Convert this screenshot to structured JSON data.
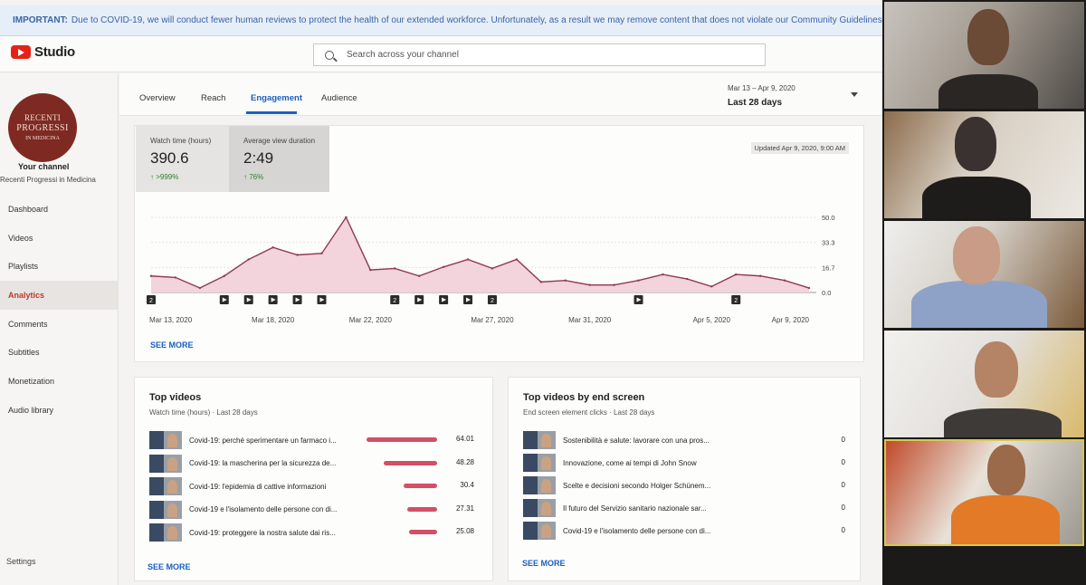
{
  "banner": {
    "important": "IMPORTANT:",
    "text": "Due to COVID-19, we will conduct fewer human reviews to protect the health of our extended workforce. Unfortunately, as a result we may remove content that does not violate our Community Guidelines"
  },
  "header": {
    "logo_text": "Studio",
    "search_placeholder": "Search across your channel"
  },
  "sidebar": {
    "avatar_lines": [
      "RECENTI",
      "PROGRESSI",
      "IN MEDICINA"
    ],
    "your_channel": "Your channel",
    "channel_name": "Recenti Progressi in Medicina",
    "items": [
      {
        "label": "Dashboard"
      },
      {
        "label": "Videos"
      },
      {
        "label": "Playlists"
      },
      {
        "label": "Analytics"
      },
      {
        "label": "Comments"
      },
      {
        "label": "Subtitles"
      },
      {
        "label": "Monetization"
      },
      {
        "label": "Audio library"
      }
    ],
    "settings": "Settings"
  },
  "tabs": [
    {
      "label": "Overview"
    },
    {
      "label": "Reach"
    },
    {
      "label": "Engagement"
    },
    {
      "label": "Audience"
    }
  ],
  "date_range": {
    "dates": "Mar 13 – Apr 9, 2020",
    "label": "Last 28 days"
  },
  "metrics": [
    {
      "label": "Watch time (hours)",
      "value": "390.6",
      "change": "↑ >999%"
    },
    {
      "label": "Average view duration",
      "value": "2:49",
      "change": "↑ 76%"
    }
  ],
  "updated": "Updated Apr 9, 2020, 9:00 AM",
  "chart_data": {
    "type": "area",
    "title": "Average view duration",
    "x": [
      "Mar 13",
      "Mar 14",
      "Mar 15",
      "Mar 16",
      "Mar 17",
      "Mar 18",
      "Mar 19",
      "Mar 20",
      "Mar 21",
      "Mar 22",
      "Mar 23",
      "Mar 24",
      "Mar 25",
      "Mar 26",
      "Mar 27",
      "Mar 28",
      "Mar 29",
      "Mar 30",
      "Mar 31",
      "Apr 1",
      "Apr 2",
      "Apr 3",
      "Apr 4",
      "Apr 5",
      "Apr 6",
      "Apr 7",
      "Apr 8",
      "Apr 9"
    ],
    "values": [
      11,
      10,
      3,
      11,
      22,
      30,
      25,
      26,
      50,
      15,
      16,
      11,
      17,
      22,
      16,
      22,
      7,
      8,
      5,
      5,
      8,
      12,
      9,
      4,
      12,
      11,
      8,
      3
    ],
    "xtick_labels": [
      "Mar 13, 2020",
      "Mar 18, 2020",
      "Mar 22, 2020",
      "Mar 27, 2020",
      "Mar 31, 2020",
      "Apr 5, 2020",
      "Apr 9, 2020"
    ],
    "xtick_index": [
      0,
      5,
      9,
      14,
      18,
      23,
      27
    ],
    "yticks": [
      "0.0",
      "16.7",
      "33.3",
      "50.0"
    ],
    "ylim": [
      0,
      50
    ],
    "markers": [
      {
        "index": 0,
        "kind": "2"
      },
      {
        "index": 3,
        "kind": "play"
      },
      {
        "index": 4,
        "kind": "play"
      },
      {
        "index": 5,
        "kind": "play"
      },
      {
        "index": 6,
        "kind": "play"
      },
      {
        "index": 7,
        "kind": "play"
      },
      {
        "index": 10,
        "kind": "2"
      },
      {
        "index": 11,
        "kind": "play"
      },
      {
        "index": 12,
        "kind": "play"
      },
      {
        "index": 13,
        "kind": "play"
      },
      {
        "index": 14,
        "kind": "2"
      },
      {
        "index": 20,
        "kind": "play"
      },
      {
        "index": 24,
        "kind": "2"
      }
    ],
    "line_color": "#8e3a52",
    "fill_color": "#f3d3dc"
  },
  "see_more": "SEE MORE",
  "top_videos": {
    "title": "Top videos",
    "subtitle": "Watch time (hours) · Last 28 days",
    "rows": [
      {
        "title": "Covid-19: perché sperimentare un farmaco i...",
        "value": 64.01,
        "label": "64.01"
      },
      {
        "title": "Covid-19: la mascherina per la sicurezza de...",
        "value": 48.28,
        "label": "48.28"
      },
      {
        "title": "Covid-19: l'epidemia di cattive informazioni",
        "value": 30.4,
        "label": "30.4"
      },
      {
        "title": "Covid-19 e l'isolamento delle persone con di...",
        "value": 27.31,
        "label": "27.31"
      },
      {
        "title": "Covid-19: proteggere la nostra salute dai ris...",
        "value": 25.08,
        "label": "25.08"
      }
    ],
    "bar_color": "#d24f66",
    "max": 64.01
  },
  "top_end_screen": {
    "title": "Top videos by end screen",
    "subtitle": "End screen element clicks · Last 28 days",
    "rows": [
      {
        "title": "Sostenibilità e salute: lavorare con una pros...",
        "value": "0"
      },
      {
        "title": "Innovazione, come ai tempi di John Snow",
        "value": "0"
      },
      {
        "title": "Scelte e decisioni secondo Holger Schünem...",
        "value": "0"
      },
      {
        "title": "Il futuro del Servizio sanitario nazionale sar...",
        "value": "0"
      },
      {
        "title": "Covid-19 e l'isolamento delle persone con di...",
        "value": "0"
      }
    ]
  }
}
